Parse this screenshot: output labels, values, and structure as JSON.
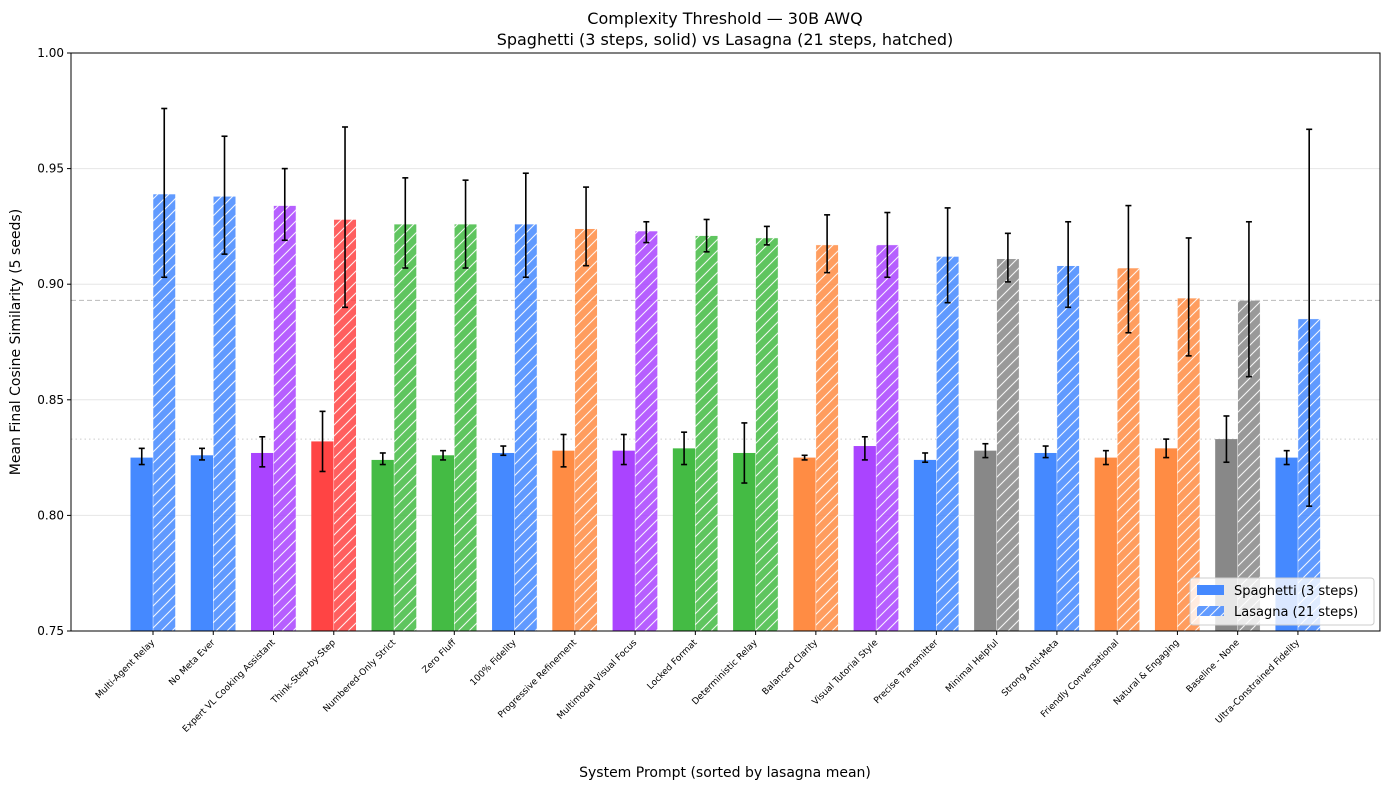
{
  "chart_data": {
    "type": "bar",
    "title": "Complexity Threshold — 30B AWQ",
    "subtitle": "Spaghetti (3 steps, solid) vs Lasagna (21 steps, hatched)",
    "xlabel": "System Prompt (sorted by lasagna mean)",
    "ylabel": "Mean Final Cosine Similarity (5 seeds)",
    "ylim": [
      0.75,
      1.0
    ],
    "yticks": [
      "0.75",
      "0.80",
      "0.85",
      "0.90",
      "0.95",
      "1.00"
    ],
    "grid": "y",
    "legend_position": "lower-right",
    "categories": [
      "Multi-Agent Relay",
      "No Meta Ever",
      "Expert VL Cooking Assistant",
      "Think-Step-by-Step",
      "Numbered-Only Strict",
      "Zero Fluff",
      "100% Fidelity",
      "Progressive Refinement",
      "Multimodal Visual Focus",
      "Locked Format",
      "Deterministic Relay",
      "Balanced Clarity",
      "Visual Tutorial Style",
      "Precise Transmitter",
      "Minimal Helpful",
      "Strong Anti-Meta",
      "Friendly Conversational",
      "Natural & Engaging",
      "Baseline - None",
      "Ultra-Constrained Fidelity"
    ],
    "category_colors": [
      "#4589ff",
      "#4589ff",
      "#aa44ff",
      "#ff4444",
      "#44bb44",
      "#44bb44",
      "#4589ff",
      "#ff8c44",
      "#aa44ff",
      "#44bb44",
      "#44bb44",
      "#ff8c44",
      "#aa44ff",
      "#4589ff",
      "#888888",
      "#4589ff",
      "#ff8c44",
      "#ff8c44",
      "#888888",
      "#4589ff"
    ],
    "series": [
      {
        "name": "Spaghetti (3 steps)",
        "style": "solid",
        "values": [
          0.825,
          0.826,
          0.827,
          0.832,
          0.824,
          0.826,
          0.827,
          0.828,
          0.828,
          0.829,
          0.827,
          0.825,
          0.83,
          0.824,
          0.828,
          0.827,
          0.825,
          0.829,
          0.833,
          0.825
        ],
        "err_low": [
          0.822,
          0.824,
          0.821,
          0.819,
          0.822,
          0.824,
          0.826,
          0.821,
          0.822,
          0.822,
          0.814,
          0.824,
          0.824,
          0.823,
          0.825,
          0.825,
          0.822,
          0.825,
          0.823,
          0.822
        ],
        "err_high": [
          0.829,
          0.829,
          0.834,
          0.845,
          0.827,
          0.828,
          0.83,
          0.835,
          0.835,
          0.836,
          0.84,
          0.826,
          0.834,
          0.827,
          0.831,
          0.83,
          0.828,
          0.833,
          0.843,
          0.828
        ]
      },
      {
        "name": "Lasagna (21 steps)",
        "style": "hatched",
        "values": [
          0.939,
          0.938,
          0.934,
          0.928,
          0.926,
          0.926,
          0.926,
          0.924,
          0.923,
          0.921,
          0.92,
          0.917,
          0.917,
          0.912,
          0.911,
          0.908,
          0.907,
          0.894,
          0.893,
          0.885
        ],
        "err_low": [
          0.903,
          0.913,
          0.919,
          0.89,
          0.907,
          0.907,
          0.903,
          0.908,
          0.918,
          0.914,
          0.917,
          0.905,
          0.903,
          0.892,
          0.901,
          0.89,
          0.879,
          0.869,
          0.86,
          0.804
        ],
        "err_high": [
          0.976,
          0.964,
          0.95,
          0.968,
          0.946,
          0.945,
          0.948,
          0.942,
          0.927,
          0.928,
          0.925,
          0.93,
          0.931,
          0.933,
          0.922,
          0.927,
          0.934,
          0.92,
          0.927,
          0.967
        ]
      }
    ],
    "reference_lines": [
      {
        "style": "dashed",
        "value": 0.893
      },
      {
        "style": "dotted",
        "value": 0.833
      }
    ]
  }
}
